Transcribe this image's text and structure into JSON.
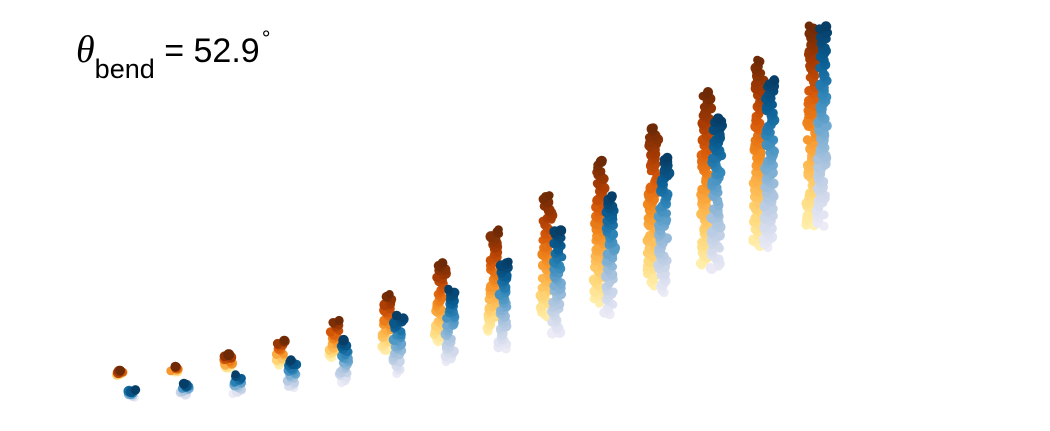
{
  "chart_data": {
    "type": "scatter",
    "annotation": {
      "symbol": "θ",
      "subscript": "bend",
      "equals": "=",
      "value": "52.9",
      "degree": "°"
    },
    "axes_visible": false,
    "grid": false,
    "palette": {
      "orange": [
        "#fff0b0",
        "#fed87a",
        "#fdb54c",
        "#f28a1f",
        "#d85a0a",
        "#a63a03",
        "#6e2a06"
      ],
      "blue": [
        "#ecebf6",
        "#cfd8ea",
        "#a9c3de",
        "#6fa8d0",
        "#2f86b9",
        "#0a5f95",
        "#073e68"
      ]
    },
    "series": [
      {
        "name": "",
        "color_family": "orange",
        "columns": [
          {
            "x": 1.0,
            "y_bottom": 0.0,
            "y_top": 0.2
          },
          {
            "x": 2.0,
            "y_bottom": 0.1,
            "y_top": 0.4
          },
          {
            "x": 3.0,
            "y_bottom": 0.3,
            "y_top": 0.9
          },
          {
            "x": 4.0,
            "y_bottom": 0.5,
            "y_top": 1.6
          },
          {
            "x": 5.0,
            "y_bottom": 0.8,
            "y_top": 2.5
          },
          {
            "x": 6.0,
            "y_bottom": 1.1,
            "y_top": 3.7
          },
          {
            "x": 7.0,
            "y_bottom": 1.5,
            "y_top": 5.1
          },
          {
            "x": 8.0,
            "y_bottom": 2.0,
            "y_top": 6.6
          },
          {
            "x": 9.0,
            "y_bottom": 2.6,
            "y_top": 8.2
          },
          {
            "x": 10.0,
            "y_bottom": 3.3,
            "y_top": 9.8
          },
          {
            "x": 11.0,
            "y_bottom": 4.1,
            "y_top": 11.3
          },
          {
            "x": 12.0,
            "y_bottom": 5.0,
            "y_top": 12.9
          },
          {
            "x": 13.0,
            "y_bottom": 5.9,
            "y_top": 14.4
          },
          {
            "x": 14.0,
            "y_bottom": 6.8,
            "y_top": 15.9
          }
        ]
      },
      {
        "name": "",
        "color_family": "blue",
        "columns": [
          {
            "x": 1.2,
            "y_bottom": -1.0,
            "y_top": -0.7
          },
          {
            "x": 2.2,
            "y_bottom": -0.9,
            "y_top": -0.4
          },
          {
            "x": 3.2,
            "y_bottom": -0.8,
            "y_top": 0.0
          },
          {
            "x": 4.2,
            "y_bottom": -0.6,
            "y_top": 0.7
          },
          {
            "x": 5.2,
            "y_bottom": -0.3,
            "y_top": 1.6
          },
          {
            "x": 6.2,
            "y_bottom": 0.1,
            "y_top": 2.7
          },
          {
            "x": 7.2,
            "y_bottom": 0.6,
            "y_top": 3.9
          },
          {
            "x": 8.2,
            "y_bottom": 1.2,
            "y_top": 5.2
          },
          {
            "x": 9.2,
            "y_bottom": 1.9,
            "y_top": 6.6
          },
          {
            "x": 10.2,
            "y_bottom": 2.8,
            "y_top": 8.2
          },
          {
            "x": 11.2,
            "y_bottom": 3.8,
            "y_top": 9.9
          },
          {
            "x": 12.2,
            "y_bottom": 4.8,
            "y_top": 11.7
          },
          {
            "x": 13.2,
            "y_bottom": 5.8,
            "y_top": 13.5
          },
          {
            "x": 14.2,
            "y_bottom": 6.8,
            "y_top": 15.9
          }
        ]
      }
    ],
    "xlim": [
      0.5,
      15.0
    ],
    "ylim": [
      -1.5,
      16.2
    ]
  }
}
